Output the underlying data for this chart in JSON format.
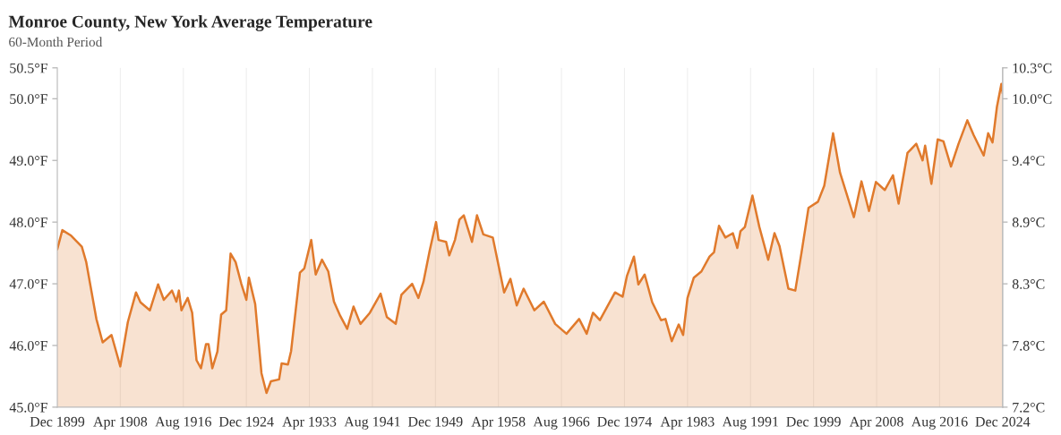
{
  "chart_data": {
    "type": "area",
    "title": "Monroe County, New York Average Temperature",
    "subtitle": "60-Month Period",
    "x": [
      "1899-12",
      "1900-08",
      "1901-10",
      "1903-03",
      "1903-10",
      "1905-02",
      "1905-12",
      "1907-02",
      "1908-04",
      "1909-04",
      "1910-05",
      "1910-12",
      "1912-03",
      "1913-04",
      "1914-01",
      "1915-02",
      "1915-09",
      "1916-01",
      "1916-05",
      "1917-03",
      "1917-10",
      "1918-05",
      "1918-12",
      "1919-08",
      "1919-12",
      "1920-06",
      "1921-02",
      "1921-08",
      "1922-04",
      "1922-11",
      "1923-07",
      "1924-04",
      "1924-12",
      "1925-04",
      "1926-02",
      "1926-12",
      "1927-08",
      "1928-03",
      "1929-04",
      "1929-08",
      "1930-06",
      "1930-11",
      "1932-01",
      "1932-08",
      "1933-07",
      "1934-02",
      "1934-12",
      "1935-10",
      "1936-07",
      "1937-05",
      "1938-04",
      "1939-02",
      "1940-01",
      "1941-04",
      "1942-09",
      "1943-07",
      "1944-09",
      "1945-06",
      "1946-11",
      "1947-09",
      "1948-05",
      "1949-03",
      "1950-01",
      "1950-05",
      "1951-05",
      "1951-10",
      "1952-07",
      "1953-02",
      "1953-09",
      "1954-10",
      "1955-06",
      "1956-04",
      "1957-07",
      "1959-01",
      "1959-11",
      "1960-09",
      "1961-08",
      "1963-01",
      "1964-04",
      "1965-10",
      "1967-04",
      "1968-12",
      "1969-12",
      "1970-10",
      "1971-09",
      "1973-09",
      "1974-09",
      "1975-04",
      "1976-03",
      "1976-10",
      "1977-08",
      "1978-08",
      "1979-10",
      "1980-05",
      "1981-03",
      "1982-02",
      "1982-09",
      "1983-04",
      "1984-02",
      "1985-02",
      "1986-03",
      "1986-10",
      "1987-06",
      "1988-04",
      "1989-04",
      "1989-11",
      "1990-04",
      "1990-11",
      "1991-11",
      "1992-10",
      "1993-12",
      "1994-10",
      "1995-06",
      "1996-08",
      "1997-07",
      "1998-05",
      "1999-04",
      "2000-07",
      "2001-05",
      "2002-07",
      "2003-06",
      "2005-04",
      "2006-04",
      "2007-04",
      "2008-03",
      "2009-05",
      "2010-06",
      "2011-03",
      "2012-05",
      "2013-07",
      "2014-05",
      "2014-09",
      "2015-07",
      "2016-05",
      "2017-02",
      "2018-02",
      "2019-02",
      "2020-04",
      "2021-02",
      "2022-06",
      "2023-01",
      "2023-08",
      "2024-03",
      "2024-10",
      "2024-12"
    ],
    "series": [
      {
        "color": "#e07a2c",
        "values": [
          47.56,
          47.87,
          47.78,
          47.6,
          47.35,
          46.43,
          46.05,
          46.17,
          45.66,
          46.38,
          46.86,
          46.7,
          46.57,
          46.99,
          46.74,
          46.89,
          46.71,
          46.89,
          46.57,
          46.77,
          46.53,
          45.76,
          45.63,
          46.02,
          46.02,
          45.63,
          45.9,
          46.5,
          46.57,
          47.49,
          47.35,
          47.0,
          46.74,
          47.1,
          46.67,
          45.55,
          45.23,
          45.42,
          45.45,
          45.71,
          45.69,
          45.91,
          47.18,
          47.25,
          47.71,
          47.15,
          47.39,
          47.2,
          46.71,
          46.48,
          46.27,
          46.63,
          46.35,
          46.53,
          46.84,
          46.46,
          46.35,
          46.82,
          47.0,
          46.77,
          47.03,
          47.54,
          48.0,
          47.71,
          47.68,
          47.46,
          47.71,
          48.04,
          48.11,
          47.68,
          48.11,
          47.8,
          47.75,
          46.86,
          47.08,
          46.65,
          46.92,
          46.57,
          46.71,
          46.35,
          46.19,
          46.43,
          46.19,
          46.53,
          46.41,
          46.86,
          46.79,
          47.13,
          47.44,
          46.99,
          47.15,
          46.7,
          46.41,
          46.43,
          46.07,
          46.34,
          46.17,
          46.77,
          47.1,
          47.2,
          47.44,
          47.51,
          47.94,
          47.75,
          47.82,
          47.58,
          47.85,
          47.92,
          48.43,
          47.92,
          47.39,
          47.82,
          47.61,
          46.92,
          46.89,
          47.51,
          48.23,
          48.33,
          48.59,
          49.44,
          48.8,
          48.08,
          48.66,
          48.18,
          48.65,
          48.52,
          48.76,
          48.3,
          49.12,
          49.27,
          49.0,
          49.24,
          48.62,
          49.34,
          49.31,
          48.9,
          49.27,
          49.65,
          49.41,
          49.08,
          49.44,
          49.29,
          49.87,
          50.24,
          50.09
        ]
      }
    ],
    "xlim": [
      "1899-12",
      "2024-12"
    ],
    "xticks": [
      {
        "value": "1899-12",
        "label": "Dec 1899"
      },
      {
        "value": "1908-04",
        "label": "Apr 1908"
      },
      {
        "value": "1916-08",
        "label": "Aug 1916"
      },
      {
        "value": "1924-12",
        "label": "Dec 1924"
      },
      {
        "value": "1933-04",
        "label": "Apr 1933"
      },
      {
        "value": "1941-08",
        "label": "Aug 1941"
      },
      {
        "value": "1949-12",
        "label": "Dec 1949"
      },
      {
        "value": "1958-04",
        "label": "Apr 1958"
      },
      {
        "value": "1966-08",
        "label": "Aug 1966"
      },
      {
        "value": "1974-12",
        "label": "Dec 1974"
      },
      {
        "value": "1983-04",
        "label": "Apr 1983"
      },
      {
        "value": "1991-08",
        "label": "Aug 1991"
      },
      {
        "value": "1999-12",
        "label": "Dec 1999"
      },
      {
        "value": "2008-04",
        "label": "Apr 2008"
      },
      {
        "value": "2016-08",
        "label": "Aug 2016"
      },
      {
        "value": "2024-12",
        "label": "Dec 2024"
      }
    ],
    "ylim": [
      45.0,
      50.5
    ],
    "yticks": [
      {
        "value": 45.0,
        "label": "45.0°F"
      },
      {
        "value": 46.0,
        "label": "46.0°F"
      },
      {
        "value": 47.0,
        "label": "47.0°F"
      },
      {
        "value": 48.0,
        "label": "48.0°F"
      },
      {
        "value": 49.0,
        "label": "49.0°F"
      },
      {
        "value": 50.0,
        "label": "50.0°F"
      },
      {
        "value": 50.5,
        "label": "50.5°F"
      }
    ],
    "y2lim": [
      7.222,
      10.278
    ],
    "y2ticks": [
      {
        "value": 7.222,
        "label": "7.2°C"
      },
      {
        "value": 7.778,
        "label": "7.8°C"
      },
      {
        "value": 8.333,
        "label": "8.3°C"
      },
      {
        "value": 8.889,
        "label": "8.9°C"
      },
      {
        "value": 9.444,
        "label": "9.4°C"
      },
      {
        "value": 10.0,
        "label": "10.0°C"
      },
      {
        "value": 10.278,
        "label": "10.3°C"
      }
    ],
    "grid": "x",
    "legend": false
  }
}
